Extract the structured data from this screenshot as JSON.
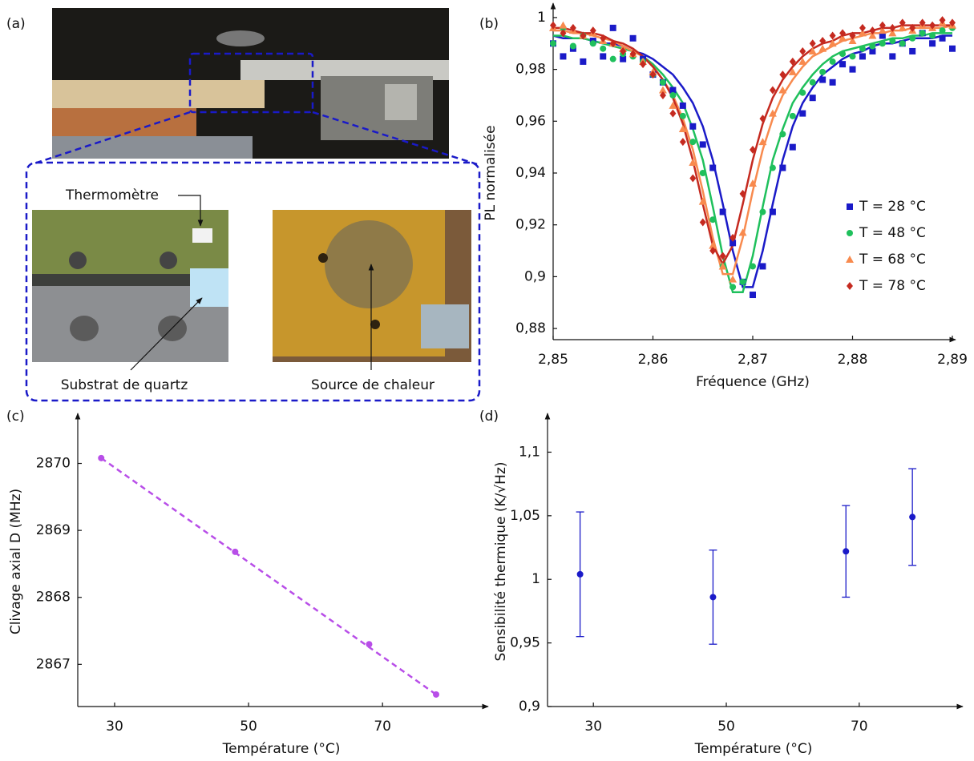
{
  "photo_panel": {
    "label": "(a)",
    "callouts": [
      "Thermomètre",
      "Substrat de quartz",
      "Source de chaleur"
    ]
  },
  "chart_data": [
    {
      "type": "scatter",
      "panel_label": "(b)",
      "x_label": "Fréquence (GHz)",
      "y_label": "PL normalisée",
      "xlim": [
        2.85,
        2.89
      ],
      "ylim": [
        0.8757,
        1.0043
      ],
      "xticks": [
        {
          "value": 2.85,
          "label": "2,85"
        },
        {
          "value": 2.86,
          "label": "2,86"
        },
        {
          "value": 2.87,
          "label": "2,87"
        },
        {
          "value": 2.88,
          "label": "2,88"
        },
        {
          "value": 2.89,
          "label": "2,89"
        }
      ],
      "yticks": [
        {
          "value": 0.88,
          "label": "0,88"
        },
        {
          "value": 0.9,
          "label": "0,9"
        },
        {
          "value": 0.92,
          "label": "0,92"
        },
        {
          "value": 0.94,
          "label": "0,94"
        },
        {
          "value": 0.96,
          "label": "0,96"
        },
        {
          "value": 0.98,
          "label": "0,98"
        },
        1
      ],
      "legend": "right",
      "x": [
        2.85,
        2.851,
        2.852,
        2.853,
        2.854,
        2.855,
        2.856,
        2.857,
        2.858,
        2.859,
        2.86,
        2.861,
        2.862,
        2.863,
        2.864,
        2.865,
        2.866,
        2.867,
        2.868,
        2.869,
        2.87,
        2.871,
        2.872,
        2.873,
        2.874,
        2.875,
        2.876,
        2.877,
        2.878,
        2.879,
        2.88,
        2.881,
        2.882,
        2.883,
        2.884,
        2.885,
        2.886,
        2.887,
        2.888,
        2.889,
        2.89
      ],
      "series": [
        {
          "name": "T = 28 °C",
          "color": "#1a1ac8",
          "marker": "square",
          "values": [
            0.99,
            0.985,
            0.988,
            0.983,
            0.991,
            0.985,
            0.996,
            0.984,
            0.992,
            0.984,
            0.978,
            0.975,
            0.972,
            0.966,
            0.958,
            0.951,
            0.942,
            0.925,
            0.913,
            0.898,
            0.893,
            0.904,
            0.925,
            0.942,
            0.95,
            0.963,
            0.969,
            0.976,
            0.975,
            0.982,
            0.98,
            0.985,
            0.987,
            0.993,
            0.985,
            0.99,
            0.987,
            0.994,
            0.99,
            0.992,
            0.988
          ],
          "fit": [
            0.993,
            0.992,
            0.992,
            0.992,
            0.991,
            0.99,
            0.99,
            0.989,
            0.987,
            0.986,
            0.984,
            0.981,
            0.978,
            0.973,
            0.967,
            0.958,
            0.945,
            0.928,
            0.91,
            0.896,
            0.896,
            0.91,
            0.928,
            0.945,
            0.958,
            0.967,
            0.973,
            0.978,
            0.981,
            0.984,
            0.986,
            0.987,
            0.989,
            0.99,
            0.99,
            0.991,
            0.992,
            0.992,
            0.992,
            0.993,
            0.993
          ]
        },
        {
          "name": "T = 48 °C",
          "color": "#1fc05c",
          "marker": "circle",
          "values": [
            0.99,
            0.996,
            0.989,
            0.993,
            0.99,
            0.988,
            0.984,
            0.986,
            0.985,
            0.983,
            0.978,
            0.975,
            0.97,
            0.962,
            0.952,
            0.94,
            0.922,
            0.904,
            0.896,
            0.898,
            0.904,
            0.925,
            0.942,
            0.955,
            0.962,
            0.971,
            0.975,
            0.979,
            0.983,
            0.986,
            0.985,
            0.988,
            0.989,
            0.99,
            0.991,
            0.99,
            0.992,
            0.994,
            0.993,
            0.995,
            0.996
          ],
          "fit": [
            0.993,
            0.993,
            0.992,
            0.992,
            0.991,
            0.99,
            0.989,
            0.988,
            0.987,
            0.985,
            0.982,
            0.978,
            0.973,
            0.967,
            0.957,
            0.945,
            0.927,
            0.908,
            0.894,
            0.894,
            0.908,
            0.927,
            0.945,
            0.957,
            0.967,
            0.973,
            0.978,
            0.982,
            0.985,
            0.987,
            0.988,
            0.989,
            0.99,
            0.991,
            0.992,
            0.992,
            0.993,
            0.993,
            0.994,
            0.994,
            0.994
          ]
        },
        {
          "name": "T = 68 °C",
          "color": "#f88a4e",
          "marker": "triangle",
          "values": [
            0.996,
            0.997,
            0.995,
            0.993,
            0.994,
            0.991,
            0.99,
            0.988,
            0.986,
            0.983,
            0.979,
            0.972,
            0.966,
            0.957,
            0.944,
            0.929,
            0.912,
            0.904,
            0.899,
            0.917,
            0.936,
            0.952,
            0.963,
            0.972,
            0.979,
            0.983,
            0.987,
            0.988,
            0.99,
            0.992,
            0.991,
            0.994,
            0.993,
            0.995,
            0.994,
            0.996,
            0.995,
            0.997,
            0.996,
            0.998,
            0.997
          ],
          "fit": [
            0.995,
            0.995,
            0.994,
            0.994,
            0.993,
            0.992,
            0.991,
            0.989,
            0.987,
            0.985,
            0.981,
            0.976,
            0.97,
            0.961,
            0.949,
            0.933,
            0.915,
            0.901,
            0.901,
            0.915,
            0.933,
            0.949,
            0.961,
            0.97,
            0.976,
            0.981,
            0.985,
            0.987,
            0.989,
            0.991,
            0.992,
            0.993,
            0.994,
            0.994,
            0.995,
            0.995,
            0.996,
            0.996,
            0.996,
            0.996,
            0.997
          ]
        },
        {
          "name": "T = 78 °C",
          "color": "#c52a20",
          "marker": "diamond",
          "values": [
            0.997,
            0.994,
            0.996,
            0.993,
            0.995,
            0.992,
            0.99,
            0.987,
            0.986,
            0.982,
            0.978,
            0.97,
            0.963,
            0.952,
            0.938,
            0.921,
            0.91,
            0.908,
            0.915,
            0.932,
            0.949,
            0.961,
            0.972,
            0.978,
            0.983,
            0.987,
            0.99,
            0.991,
            0.993,
            0.994,
            0.993,
            0.996,
            0.995,
            0.997,
            0.996,
            0.998,
            0.996,
            0.998,
            0.997,
            0.999,
            0.998
          ],
          "fit": [
            0.996,
            0.996,
            0.995,
            0.994,
            0.994,
            0.993,
            0.991,
            0.99,
            0.988,
            0.985,
            0.981,
            0.976,
            0.969,
            0.959,
            0.945,
            0.928,
            0.912,
            0.905,
            0.912,
            0.928,
            0.945,
            0.959,
            0.969,
            0.976,
            0.981,
            0.985,
            0.988,
            0.99,
            0.991,
            0.993,
            0.994,
            0.994,
            0.995,
            0.996,
            0.996,
            0.997,
            0.997,
            0.997,
            0.997,
            0.997,
            0.997
          ]
        }
      ]
    },
    {
      "type": "scatter",
      "panel_label": "(c)",
      "x_label": "Température (°C)",
      "y_label": "Clivage axial D (MHz)",
      "xlim": [
        24.5,
        85.3
      ],
      "ylim": [
        2866.37,
        2870.7
      ],
      "xticks": [
        30,
        50,
        70
      ],
      "yticks": [
        2867,
        2868,
        2869,
        2870
      ],
      "x": [
        28,
        48,
        68,
        78
      ],
      "series": [
        {
          "color": "#b84ee8",
          "marker": "circle",
          "values": [
            2870.08,
            2868.68,
            2867.3,
            2866.55
          ]
        }
      ],
      "fit": {
        "x": [
          28,
          78
        ],
        "values": [
          2870.08,
          2866.55
        ],
        "color": "#b84ee8",
        "dashed": true
      }
    },
    {
      "type": "scatter",
      "panel_label": "(d)",
      "x_label": "Température (°C)",
      "y_label": "Sensibilité thermique (K/√Hz)",
      "xlim": [
        23.1,
        85.1
      ],
      "ylim": [
        0.9,
        1.128
      ],
      "xticks": [
        30,
        50,
        70
      ],
      "yticks": [
        {
          "value": 0.9,
          "label": "0,9"
        },
        {
          "value": 0.95,
          "label": "0,95"
        },
        1,
        {
          "value": 1.05,
          "label": "1,05"
        },
        {
          "value": 1.1,
          "label": "1,1"
        }
      ],
      "x": [
        28,
        48,
        68,
        78
      ],
      "series": [
        {
          "color": "#1a1ac8",
          "marker": "circle",
          "values": [
            1.004,
            0.986,
            1.022,
            1.049
          ],
          "errors": [
            0.049,
            0.037,
            0.036,
            0.038
          ]
        }
      ]
    }
  ]
}
